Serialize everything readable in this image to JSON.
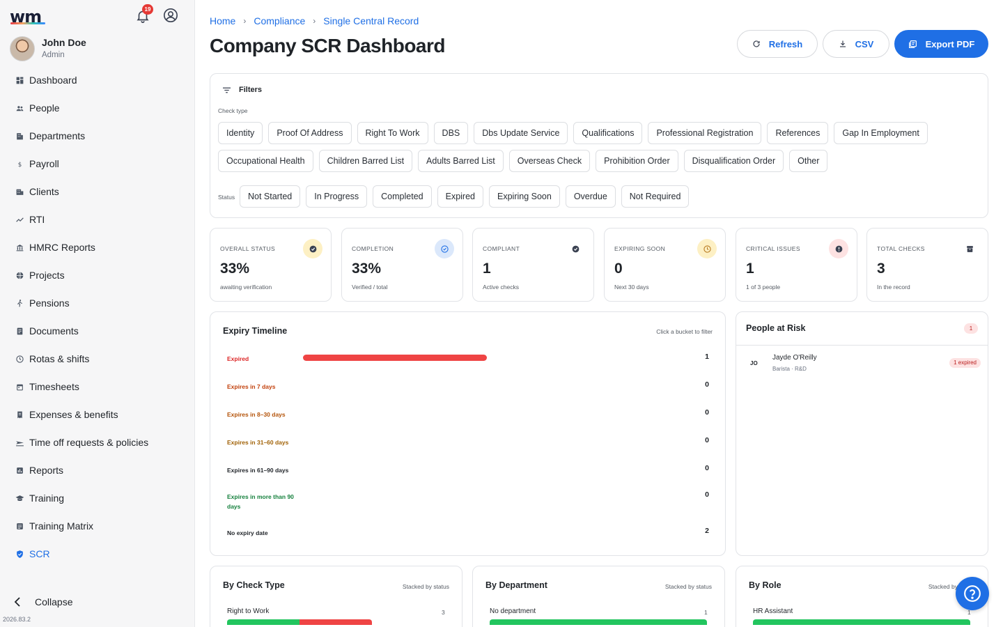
{
  "app": {
    "logo_text": "wm",
    "version": "2026.83.2",
    "notification_count": "19"
  },
  "user": {
    "name": "John Doe",
    "role": "Admin"
  },
  "sidebar": {
    "items": [
      {
        "label": "Dashboard",
        "icon": "grid-icon"
      },
      {
        "label": "People",
        "icon": "people-icon"
      },
      {
        "label": "Departments",
        "icon": "building-icon"
      },
      {
        "label": "Payroll",
        "icon": "dollar-icon"
      },
      {
        "label": "Clients",
        "icon": "clients-icon"
      },
      {
        "label": "RTI",
        "icon": "trend-icon"
      },
      {
        "label": "HMRC Reports",
        "icon": "bank-icon"
      },
      {
        "label": "Projects",
        "icon": "globe-icon"
      },
      {
        "label": "Pensions",
        "icon": "walking-icon"
      },
      {
        "label": "Documents",
        "icon": "document-icon"
      },
      {
        "label": "Rotas & shifts",
        "icon": "clock-icon"
      },
      {
        "label": "Timesheets",
        "icon": "calendar-icon"
      },
      {
        "label": "Expenses & benefits",
        "icon": "receipt-icon"
      },
      {
        "label": "Time off requests & policies",
        "icon": "plane-icon"
      },
      {
        "label": "Reports",
        "icon": "chart-icon"
      },
      {
        "label": "Training",
        "icon": "graduation-icon"
      },
      {
        "label": "Training Matrix",
        "icon": "matrix-icon"
      },
      {
        "label": "SCR",
        "icon": "shield-check-icon"
      }
    ],
    "collapse_label": "Collapse"
  },
  "breadcrumb": [
    "Home",
    "Compliance",
    "Single Central Record"
  ],
  "page": {
    "title": "Company SCR Dashboard"
  },
  "actions": {
    "refresh": "Refresh",
    "csv": "CSV",
    "export_pdf": "Export PDF"
  },
  "filters": {
    "title": "Filters",
    "check_type_label": "Check type",
    "check_types_row1": [
      "Identity",
      "Proof Of Address",
      "Right To Work",
      "DBS",
      "Dbs Update Service",
      "Qualifications",
      "Professional Registration",
      "References",
      "Gap In Employment"
    ],
    "check_types_row2": [
      "Occupational Health",
      "Children Barred List",
      "Adults Barred List",
      "Overseas Check",
      "Prohibition Order",
      "Disqualification Order",
      "Other"
    ],
    "status_label": "Status",
    "statuses": [
      "Not Started",
      "In Progress",
      "Completed",
      "Expired",
      "Expiring Soon",
      "Overdue",
      "Not Required"
    ]
  },
  "stats": [
    {
      "label": "OVERALL STATUS",
      "value": "33%",
      "sub": "awaiting verification",
      "icon": "check-badge-icon",
      "icon_bg": "#fdf0c4",
      "icon_color": "#3b4252"
    },
    {
      "label": "COMPLETION",
      "value": "33%",
      "sub": "Verified / total",
      "icon": "check-circle-icon",
      "icon_bg": "#dbe8fb",
      "icon_color": "#1f6fe5"
    },
    {
      "label": "COMPLIANT",
      "value": "1",
      "sub": "Active checks",
      "icon": "check-badge-icon",
      "icon_bg": "#ffffff",
      "icon_color": "#3b4252"
    },
    {
      "label": "EXPIRING SOON",
      "value": "0",
      "sub": "Next 30 days",
      "icon": "clock-icon",
      "icon_bg": "#fdf0c4",
      "icon_color": "#b7791f"
    },
    {
      "label": "CRITICAL ISSUES",
      "value": "1",
      "sub": "1 of 3 people",
      "icon": "alert-icon",
      "icon_bg": "#fde2e2",
      "icon_color": "#3b4252"
    },
    {
      "label": "TOTAL CHECKS",
      "value": "3",
      "sub": "In the record",
      "icon": "archive-icon",
      "icon_bg": "#ffffff",
      "icon_color": "#3b4252"
    }
  ],
  "expiry": {
    "title": "Expiry Timeline",
    "hint": "Click a bucket to filter",
    "buckets": [
      {
        "label": "Expired",
        "count": "1",
        "color": "#dc2626",
        "fill_fraction": 0.5
      },
      {
        "label": "Expires in 7 days",
        "count": "0",
        "color": "#c2410c"
      },
      {
        "label": "Expires in 8–30 days",
        "count": "0",
        "color": "#b45309"
      },
      {
        "label": "Expires in 31–60 days",
        "count": "0",
        "color": "#a16207"
      },
      {
        "label": "Expires in 61–90 days",
        "count": "0",
        "color": "#1f2328"
      },
      {
        "label": "Expires in more than 90 days",
        "count": "0",
        "color": "#15803d"
      },
      {
        "label": "No expiry date",
        "count": "2",
        "color": "#1f2328"
      }
    ]
  },
  "risk": {
    "title": "People at Risk",
    "count": "1",
    "people": [
      {
        "initials": "JO",
        "name": "Jayde O'Reilly",
        "meta": "Barista · R&D",
        "badge": "1 expired"
      }
    ]
  },
  "breakdowns": [
    {
      "title": "By Check Type",
      "hint": "Stacked by status",
      "row_label": "Right to Work",
      "row_count": "3",
      "segments": [
        {
          "fraction": 0.5,
          "color": "#22c55e"
        },
        {
          "fraction": 0.5,
          "color": "#ef4444"
        }
      ]
    },
    {
      "title": "By Department",
      "hint": "Stacked by status",
      "row_label": "No department",
      "row_count": "1",
      "segments": [
        {
          "fraction": 1,
          "color": "#22c55e"
        }
      ]
    },
    {
      "title": "By Role",
      "hint": "Stacked by status",
      "row_label": "HR Assistant",
      "row_count": "1",
      "segments": [
        {
          "fraction": 1,
          "color": "#22c55e"
        }
      ]
    }
  ],
  "colors": {
    "accent": "#1f6fe5",
    "danger": "#ef4444",
    "success": "#22c55e"
  }
}
